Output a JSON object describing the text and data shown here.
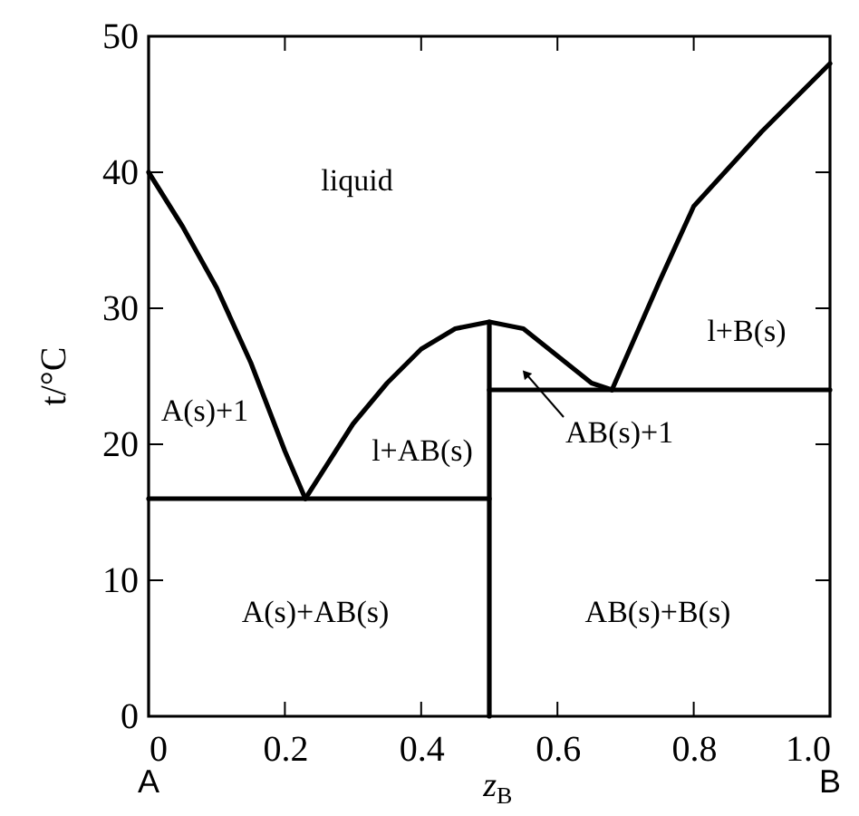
{
  "chart_data": {
    "type": "line",
    "xlabel": "z$_{B}$",
    "ylabel": "t/°C",
    "xlim": [
      0,
      1
    ],
    "ylim": [
      0,
      50
    ],
    "xticks": [
      0,
      0.2,
      0.4,
      0.6,
      0.8,
      {
        "value": 1,
        "label": "1.0"
      }
    ],
    "yticks": [
      0,
      10,
      20,
      30,
      40,
      50
    ],
    "grid": false,
    "marker": "none",
    "line_style": "solid",
    "series": [
      {
        "color": "#000000",
        "x": [
          0,
          0.05,
          0.1,
          0.15,
          0.2,
          0.23
        ],
        "values": [
          40,
          36,
          31.5,
          26,
          19.5,
          16
        ]
      },
      {
        "color": "#000000",
        "x": [
          0.23,
          0.3,
          0.35,
          0.4,
          0.45,
          0.5,
          0.55,
          0.6,
          0.65,
          0.68
        ],
        "values": [
          16,
          21.5,
          24.5,
          27,
          28.5,
          29,
          28.5,
          26.5,
          24.5,
          24
        ]
      },
      {
        "color": "#000000",
        "x": [
          0.68,
          0.75,
          0.8,
          0.9,
          1.0
        ],
        "values": [
          24,
          32,
          37.5,
          43,
          48
        ]
      },
      {
        "color": "#000000",
        "x": [
          0,
          0.5
        ],
        "values": [
          16,
          16
        ]
      },
      {
        "color": "#000000",
        "x": [
          0.5,
          1
        ],
        "values": [
          24,
          24
        ]
      },
      {
        "color": "#000000",
        "x": [
          0.5,
          0.5
        ],
        "values": [
          0,
          29
        ]
      }
    ],
    "annotations": [
      "liquid",
      "A(s)+1",
      "l+AB(s)",
      "AB(s)+1",
      "l+B(s)",
      "A(s)+AB(s)",
      "AB(s)+B(s)",
      "A",
      "B"
    ]
  }
}
